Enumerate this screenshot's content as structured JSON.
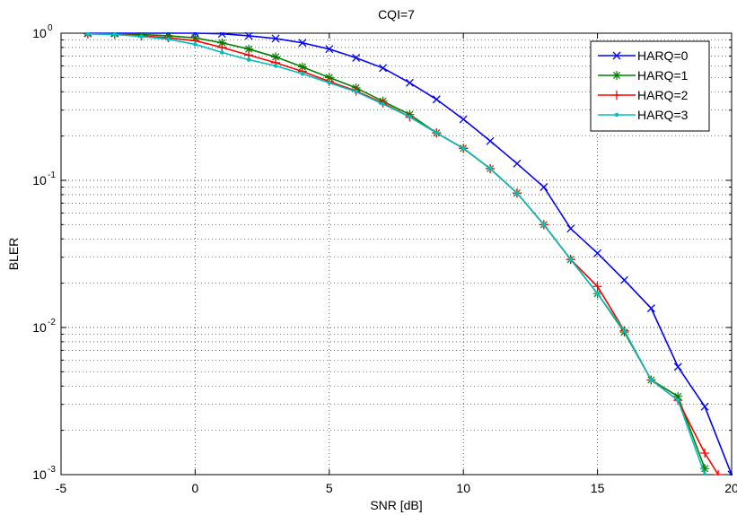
{
  "chart_data": {
    "type": "line",
    "title": "CQI=7",
    "xlabel": "SNR [dB]",
    "ylabel": "BLER",
    "xlim": [
      -5,
      20
    ],
    "ylim": [
      0.001,
      1
    ],
    "yscale": "log",
    "grid": true,
    "legend_position": "top-right",
    "x_ticks": [
      -5,
      0,
      5,
      10,
      15,
      20
    ],
    "x_tick_labels": [
      "-5",
      "0",
      "5",
      "10",
      "15",
      "20"
    ],
    "y_ticks": [
      {
        "value": 1,
        "base": "10",
        "exp": "0"
      },
      {
        "value": 0.1,
        "base": "10",
        "exp": "-1"
      },
      {
        "value": 0.01,
        "base": "10",
        "exp": "-2"
      },
      {
        "value": 0.001,
        "base": "10",
        "exp": "-3"
      }
    ],
    "series": [
      {
        "name": "HARQ=0",
        "color": "#0000ff",
        "marker": "x",
        "x": [
          -4,
          -3,
          -2,
          -1,
          0,
          1,
          2,
          3,
          4,
          5,
          6,
          7,
          8,
          9,
          10,
          11,
          12,
          13,
          14,
          15,
          16,
          17,
          18,
          19,
          20
        ],
        "y": [
          1,
          1,
          1,
          1,
          1,
          0.99,
          0.96,
          0.92,
          0.86,
          0.78,
          0.68,
          0.58,
          0.46,
          0.355,
          0.26,
          0.185,
          0.13,
          0.09,
          0.047,
          0.032,
          0.021,
          0.0135,
          0.0054,
          0.0029,
          0.001
        ]
      },
      {
        "name": "HARQ=1",
        "color": "#008000",
        "marker": "*",
        "x": [
          -4,
          -3,
          -2,
          -1,
          0,
          1,
          2,
          3,
          4,
          5,
          6,
          7,
          8,
          9,
          10,
          11,
          12,
          13,
          14,
          15,
          16,
          17,
          18,
          19
        ],
        "y": [
          0.99,
          0.99,
          0.98,
          0.96,
          0.93,
          0.86,
          0.78,
          0.69,
          0.59,
          0.5,
          0.425,
          0.345,
          0.28,
          0.21,
          0.165,
          0.12,
          0.082,
          0.05,
          0.029,
          0.017,
          0.0093,
          0.0044,
          0.0034,
          0.0011
        ]
      },
      {
        "name": "HARQ=2",
        "color": "#ff0000",
        "marker": "+",
        "x": [
          -4,
          -3,
          -2,
          -1,
          0,
          1,
          2,
          3,
          4,
          5,
          6,
          7,
          8,
          9,
          10,
          11,
          12,
          13,
          14,
          15,
          16,
          17,
          18,
          19,
          19.5
        ],
        "y": [
          0.99,
          0.98,
          0.96,
          0.93,
          0.89,
          0.8,
          0.71,
          0.63,
          0.55,
          0.47,
          0.405,
          0.335,
          0.27,
          0.21,
          0.165,
          0.12,
          0.082,
          0.05,
          0.029,
          0.019,
          0.0095,
          0.0044,
          0.0032,
          0.0014,
          0.001
        ]
      },
      {
        "name": "HARQ=3",
        "color": "#00bfbf",
        "marker": ".",
        "x": [
          -4,
          -3,
          -2,
          -1,
          0,
          1,
          2,
          3,
          4,
          5,
          6,
          7,
          8,
          9,
          10,
          11,
          12,
          13,
          14,
          15,
          16,
          17,
          18,
          19
        ],
        "y": [
          0.99,
          0.98,
          0.95,
          0.91,
          0.84,
          0.74,
          0.66,
          0.6,
          0.53,
          0.46,
          0.4,
          0.33,
          0.27,
          0.21,
          0.165,
          0.12,
          0.082,
          0.05,
          0.029,
          0.017,
          0.0095,
          0.0044,
          0.0032,
          0.001
        ]
      }
    ]
  }
}
